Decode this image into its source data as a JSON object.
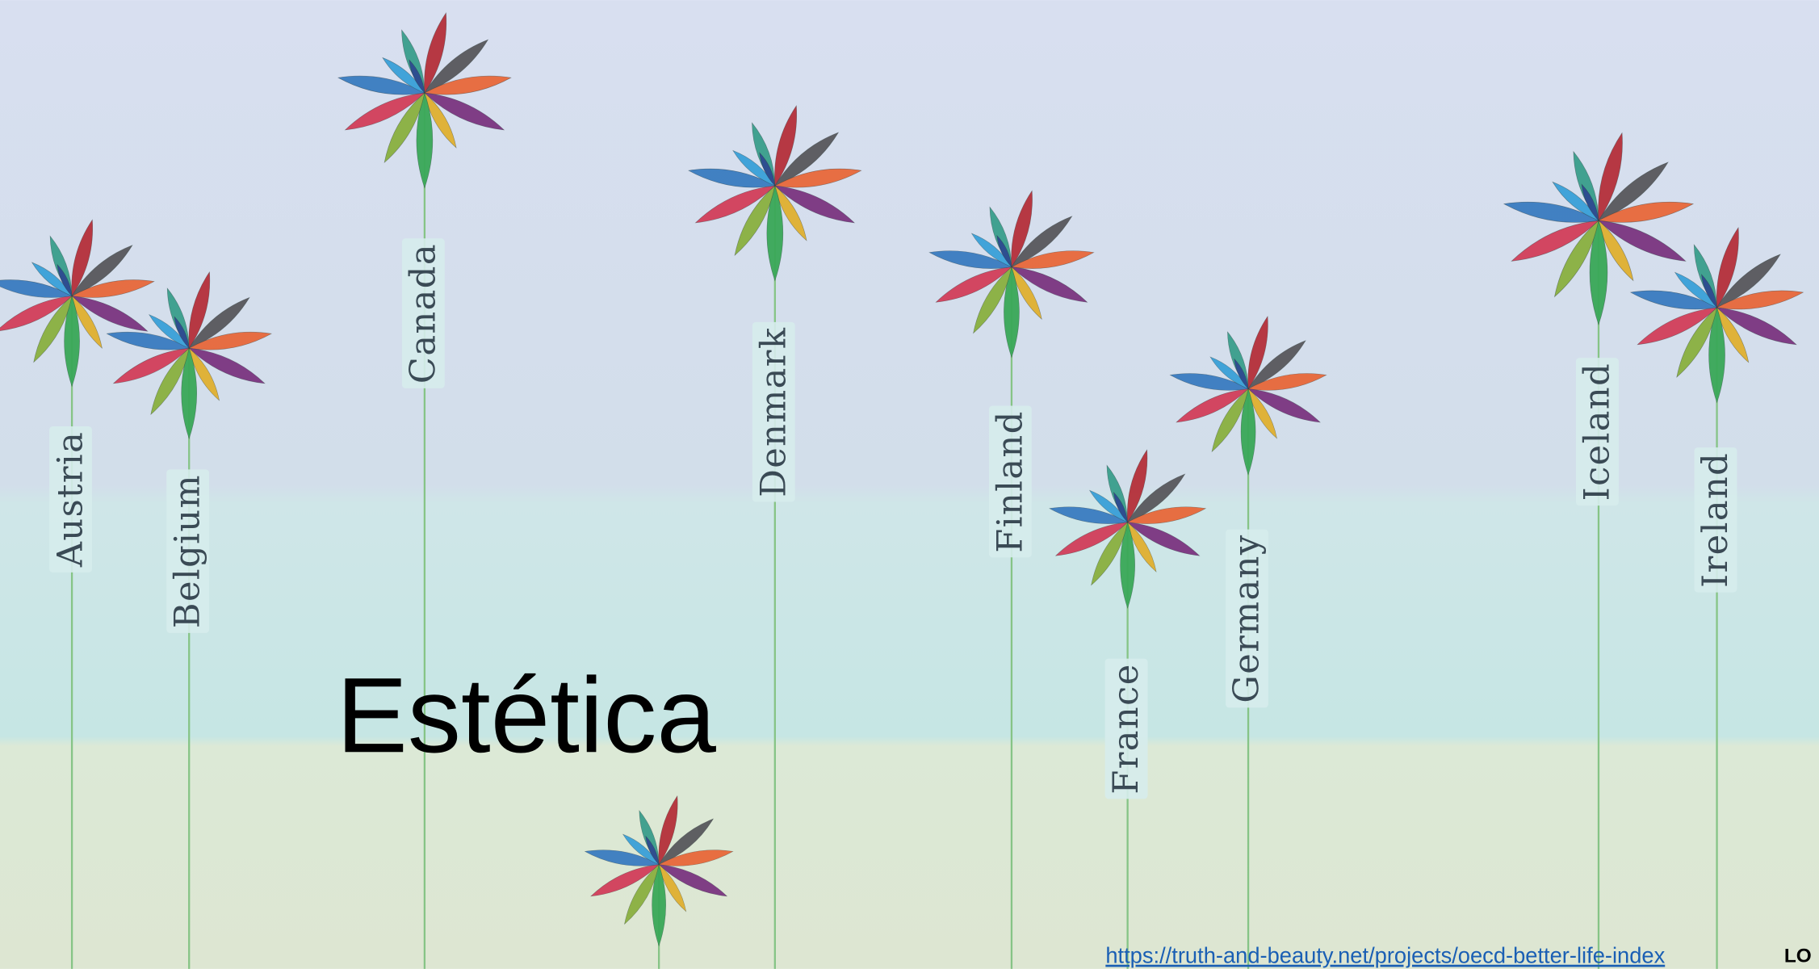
{
  "title": "Estética",
  "countries": [
    "Austria",
    "Belgium",
    "Canada",
    "Denmark",
    "Finland",
    "France",
    "Germany",
    "Iceland",
    "Ireland"
  ],
  "link": "https://truth-and-beauty.net/projects/oecd-better-life-index",
  "logo": "LO"
}
